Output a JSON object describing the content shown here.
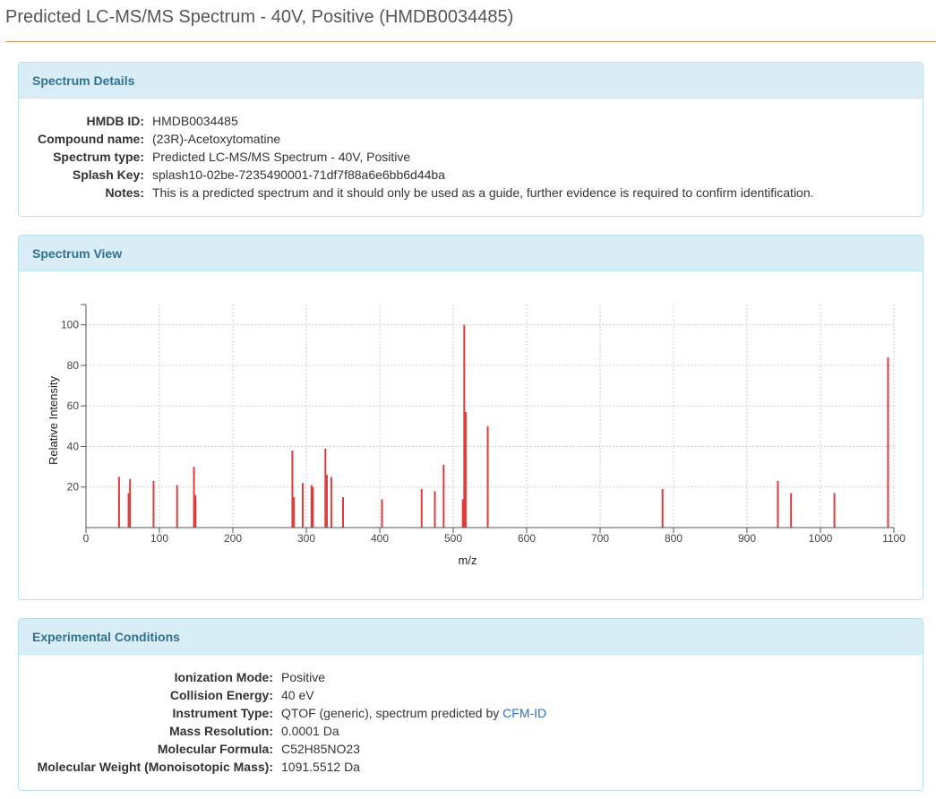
{
  "page": {
    "title": "Predicted LC-MS/MS Spectrum - 40V, Positive (HMDB0034485)"
  },
  "details": {
    "heading": "Spectrum Details",
    "rows": [
      {
        "label": "HMDB ID:",
        "value": "HMDB0034485"
      },
      {
        "label": "Compound name:",
        "value": "(23R)-Acetoxytomatine"
      },
      {
        "label": "Spectrum type:",
        "value": "Predicted LC-MS/MS Spectrum - 40V, Positive"
      },
      {
        "label": "Splash Key:",
        "value": "splash10-02be-7235490001-71df7f88a6e6bb6d44ba"
      },
      {
        "label": "Notes:",
        "value": "This is a predicted spectrum and it should only be used as a guide, further evidence is required to confirm identification."
      }
    ]
  },
  "view": {
    "heading": "Spectrum View"
  },
  "conditions": {
    "heading": "Experimental Conditions",
    "rows": [
      {
        "label": "Ionization Mode:",
        "value": "Positive"
      },
      {
        "label": "Collision Energy:",
        "value": "40 eV"
      },
      {
        "label": "Instrument Type:",
        "value": "QTOF (generic), spectrum predicted by ",
        "link": "CFM-ID"
      },
      {
        "label": "Mass Resolution:",
        "value": "0.0001 Da"
      },
      {
        "label": "Molecular Formula:",
        "value": "C52H85NO23"
      },
      {
        "label": "Molecular Weight (Monoisotopic Mass):",
        "value": "1091.5512 Da"
      }
    ]
  },
  "chart_data": {
    "type": "bar",
    "title": "",
    "xlabel": "m/z",
    "ylabel": "Relative Intensity",
    "xlim": [
      0,
      1100
    ],
    "ylim": [
      0,
      110
    ],
    "xticks": [
      0,
      100,
      200,
      300,
      400,
      500,
      600,
      700,
      800,
      900,
      1000,
      1100
    ],
    "yticks": [
      20,
      40,
      60,
      80,
      100
    ],
    "grid": true,
    "color": "#e03c3c",
    "peaks": [
      {
        "x": 45,
        "y": 25
      },
      {
        "x": 58,
        "y": 17
      },
      {
        "x": 60,
        "y": 24
      },
      {
        "x": 92,
        "y": 23
      },
      {
        "x": 124,
        "y": 21
      },
      {
        "x": 147,
        "y": 30
      },
      {
        "x": 149,
        "y": 16
      },
      {
        "x": 281,
        "y": 38
      },
      {
        "x": 283,
        "y": 15
      },
      {
        "x": 295,
        "y": 22
      },
      {
        "x": 307,
        "y": 21
      },
      {
        "x": 309,
        "y": 20
      },
      {
        "x": 326,
        "y": 39
      },
      {
        "x": 328,
        "y": 26
      },
      {
        "x": 334,
        "y": 25
      },
      {
        "x": 350,
        "y": 15
      },
      {
        "x": 403,
        "y": 14
      },
      {
        "x": 457,
        "y": 19
      },
      {
        "x": 475,
        "y": 18
      },
      {
        "x": 487,
        "y": 31
      },
      {
        "x": 513,
        "y": 14
      },
      {
        "x": 515,
        "y": 100
      },
      {
        "x": 517,
        "y": 57
      },
      {
        "x": 547,
        "y": 50
      },
      {
        "x": 785,
        "y": 19
      },
      {
        "x": 942,
        "y": 23
      },
      {
        "x": 960,
        "y": 17
      },
      {
        "x": 1019,
        "y": 17
      },
      {
        "x": 1092,
        "y": 84
      }
    ]
  }
}
